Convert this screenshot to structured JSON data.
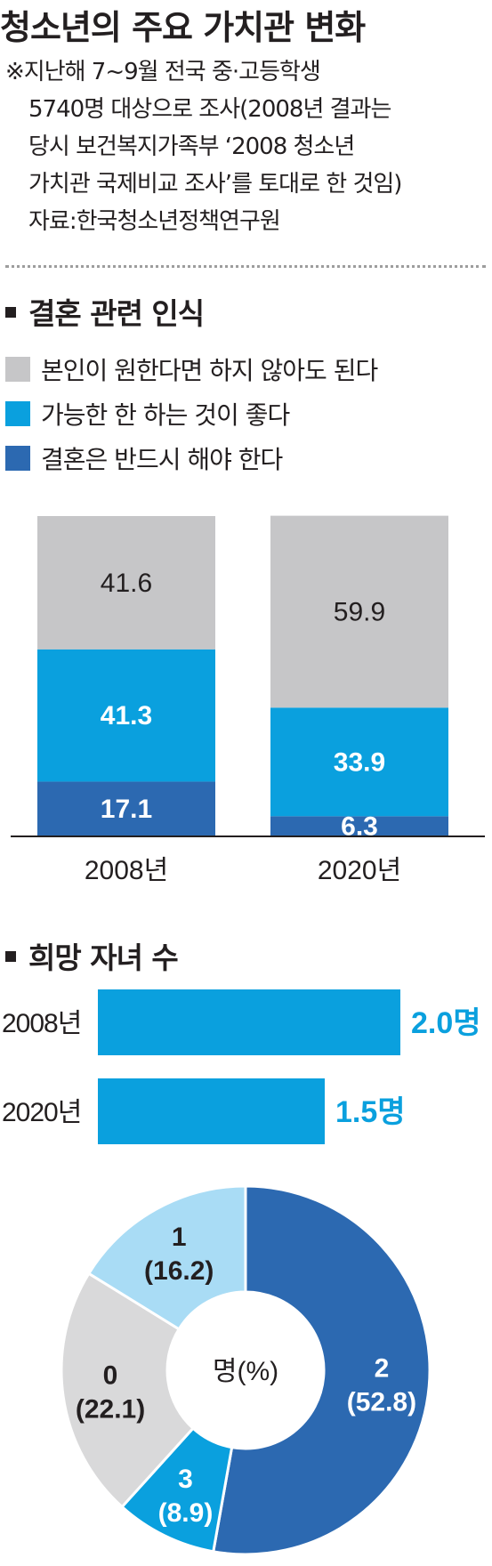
{
  "title": "청소년의 주요 가치관 변화",
  "note_lines": [
    "※지난해 7~9월 전국 중·고등학생",
    "5740명 대상으로 조사(2008년 결과는",
    "당시 보건복지가족부 ‘2008 청소년",
    "가치관 국제비교 조사’를 토대로 한 것임)",
    "자료:한국청소년정책연구원"
  ],
  "colors": {
    "gray": "#c6c6c8",
    "cyan": "#0aa0de",
    "blue": "#2c69b1",
    "light": "#a9dcf5",
    "text": "#231f20"
  },
  "chart_data": [
    {
      "type": "bar",
      "stacked": true,
      "title": "결혼 관련 인식",
      "categories": [
        "2008년",
        "2020년"
      ],
      "series": [
        {
          "name": "결혼은 반드시 해야 한다",
          "values": [
            17.1,
            6.3
          ]
        },
        {
          "name": "가능한 한 하는 것이 좋다",
          "values": [
            41.3,
            33.9
          ]
        },
        {
          "name": "본인이 원한다면 하지 않아도 된다",
          "values": [
            41.6,
            59.9
          ]
        }
      ],
      "legend_order": [
        "본인이 원한다면 하지 않아도 된다",
        "가능한 한 하는 것이 좋다",
        "결혼은 반드시 해야 한다"
      ],
      "ylim": [
        0,
        100
      ]
    },
    {
      "type": "bar",
      "orientation": "horizontal",
      "title": "희망 자녀 수",
      "categories": [
        "2008년",
        "2020년"
      ],
      "values": [
        2.0,
        1.5
      ],
      "value_labels": [
        "2.0명",
        "1.5명"
      ]
    },
    {
      "type": "pie",
      "donut": true,
      "center_label": "명(%)",
      "labels": [
        "2",
        "3",
        "0",
        "1"
      ],
      "values": [
        52.8,
        8.9,
        22.1,
        16.2
      ],
      "value_labels": [
        "(52.8)",
        "(8.9)",
        "(22.1)",
        "(16.2)"
      ]
    }
  ]
}
